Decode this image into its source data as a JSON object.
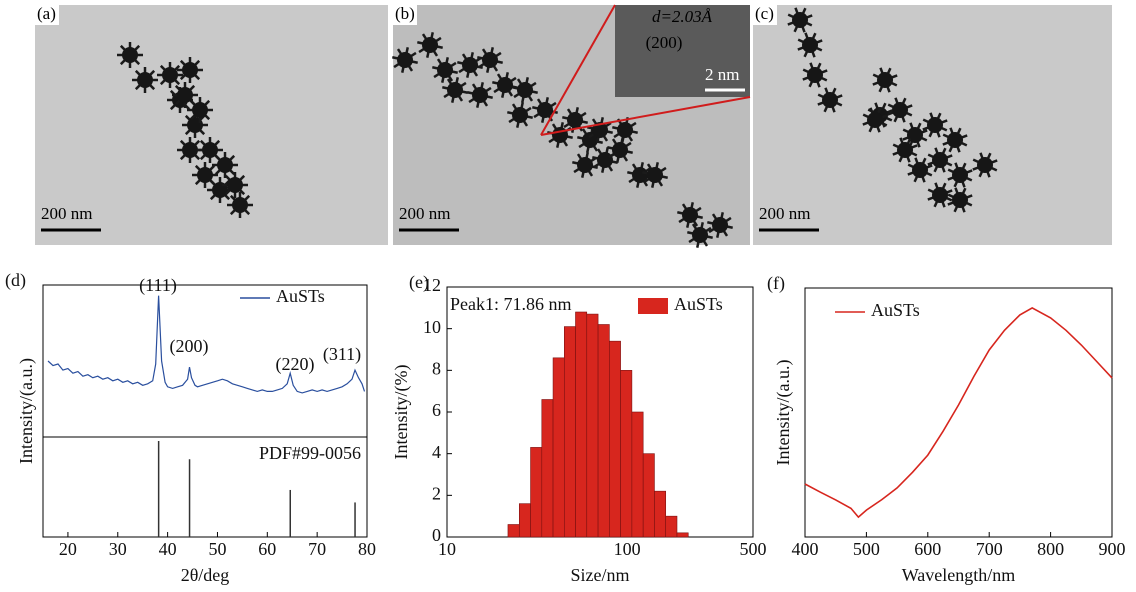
{
  "images": [
    {
      "label": "(a)",
      "scale_bar": "200 nm"
    },
    {
      "label": "(b)",
      "scale_bar": "200 nm",
      "inset": {
        "spacing": "d=2.03Å",
        "plane": "(200)",
        "scale_bar": "2 nm"
      }
    },
    {
      "label": "(c)",
      "scale_bar": "200 nm"
    }
  ],
  "chart_data": [
    {
      "type": "line",
      "panel": "(d)",
      "x_label": "2θ/deg",
      "y_label": "Intensity/(a.u.)",
      "xlim": [
        15,
        80
      ],
      "xticks": [
        20,
        30,
        40,
        50,
        60,
        70,
        80
      ],
      "ylim": [
        0,
        100
      ],
      "series": [
        {
          "name": "AuSTs",
          "color": "#2a4f9e",
          "x": [
            16,
            17,
            18,
            19,
            20,
            21,
            22,
            23,
            24,
            25,
            26,
            27,
            28,
            29,
            30,
            31,
            32,
            33,
            34,
            35,
            36,
            37,
            37.6,
            38.2,
            38.8,
            39.5,
            40,
            41,
            42,
            43,
            44,
            44.4,
            44.8,
            45.5,
            46,
            47,
            48,
            49,
            50,
            51,
            52,
            53,
            54,
            55,
            56,
            57,
            58,
            59,
            60,
            61,
            62,
            63,
            64,
            64.6,
            65.2,
            66,
            67,
            68,
            69,
            70,
            71,
            72,
            73,
            74,
            75,
            76,
            77,
            77.6,
            78.3,
            79,
            79.5
          ],
          "values": [
            50,
            47,
            48,
            44,
            45,
            42,
            43,
            40,
            41,
            39,
            40,
            38,
            39,
            37,
            38,
            36,
            37,
            35,
            36,
            34,
            35,
            37,
            48,
            93,
            50,
            36,
            33,
            32,
            33,
            34,
            38,
            46,
            39,
            34,
            33,
            34,
            35,
            36,
            37,
            38,
            37,
            35,
            34,
            33,
            32,
            31,
            30,
            31,
            30,
            30,
            31,
            32,
            35,
            42,
            34,
            30,
            29,
            30,
            31,
            30,
            31,
            30,
            31,
            32,
            33,
            35,
            38,
            44,
            39,
            35,
            30
          ]
        }
      ],
      "annotations": [
        "(111)",
        "(200)",
        "(220)",
        "(311)"
      ],
      "reference": {
        "name": "PDF#99-0056",
        "ylim": [
          0,
          100
        ],
        "x": [
          38.2,
          44.4,
          64.6,
          77.6
        ],
        "values": [
          100,
          81,
          49,
          36
        ]
      }
    },
    {
      "type": "histogram",
      "panel": "(e)",
      "x_label": "Size/nm",
      "y_label": "Intensity/(%)",
      "log_x": true,
      "xlim": [
        10,
        500
      ],
      "xticks": [
        10,
        100,
        500
      ],
      "ylim": [
        0,
        12
      ],
      "yticks": [
        0,
        2,
        4,
        6,
        8,
        10,
        12
      ],
      "bins": [
        21.8,
        25.2,
        29.1,
        33.6,
        38.8,
        44.8,
        51.7,
        59.7,
        69.0,
        79.7,
        92.0,
        106.3,
        122.8,
        141.8,
        163.8,
        189.2,
        218.5
      ],
      "series": [
        {
          "name": "AuSTs",
          "color": "#d7261e",
          "values": [
            0.6,
            1.6,
            4.3,
            6.6,
            8.6,
            10.1,
            10.8,
            10.7,
            10.2,
            9.4,
            8.0,
            6.0,
            4.0,
            2.2,
            1.0,
            0.2
          ]
        }
      ],
      "annotations": [
        "Peak1: 71.86 nm"
      ]
    },
    {
      "type": "line",
      "panel": "(f)",
      "x_label": "Wavelength/nm",
      "y_label": "Intensity/(a.u.)",
      "xlim": [
        400,
        900
      ],
      "xticks": [
        400,
        500,
        600,
        700,
        800,
        900
      ],
      "ylim": [
        0,
        100
      ],
      "series": [
        {
          "name": "AuSTs",
          "color": "#d7261e",
          "x": [
            400,
            425,
            450,
            475,
            487,
            500,
            525,
            550,
            575,
            600,
            625,
            650,
            675,
            700,
            725,
            750,
            770,
            800,
            825,
            850,
            875,
            900
          ],
          "values": [
            21.3,
            18,
            14.9,
            11.5,
            8.0,
            10.8,
            15,
            19.7,
            26,
            32.9,
            42.5,
            53.0,
            64.5,
            75.1,
            83,
            89.2,
            92.0,
            88.0,
            83,
            77.1,
            70.5,
            63.9
          ]
        }
      ]
    }
  ]
}
